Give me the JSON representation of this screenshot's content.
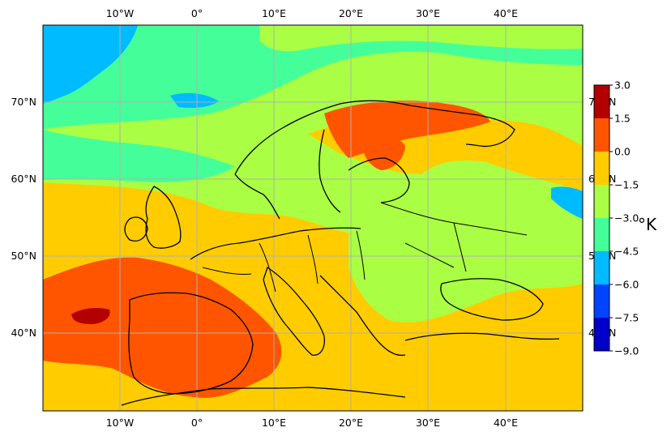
{
  "map": {
    "lon_ticks_top": [
      "10°W",
      "0°",
      "10°E",
      "20°E",
      "30°E",
      "40°E"
    ],
    "lon_ticks_bottom": [
      "10°W",
      "0°",
      "10°E",
      "20°E",
      "30°E",
      "40°E"
    ],
    "lat_ticks_left": [
      "70°N",
      "60°N",
      "50°N",
      "40°N"
    ],
    "lat_ticks_right_clipped": [
      "7",
      "6",
      "5",
      "4"
    ],
    "lat_tick_right_suffix": "N",
    "extent_lon": [
      -20,
      50
    ],
    "extent_lat": [
      30,
      80
    ],
    "gridlines": true,
    "land_outlines": true
  },
  "colorbar": {
    "unit": "°K",
    "levels": [
      "3.0",
      "1.5",
      "0.0",
      "−1.5",
      "−3.0",
      "−4.5",
      "−6.0",
      "−7.5",
      "−9.0"
    ],
    "colors": [
      "#b30000",
      "#ff5500",
      "#ffcc00",
      "#aaff44",
      "#44ff99",
      "#00bbff",
      "#0044ff",
      "#0000c8"
    ],
    "placement": "right"
  }
}
